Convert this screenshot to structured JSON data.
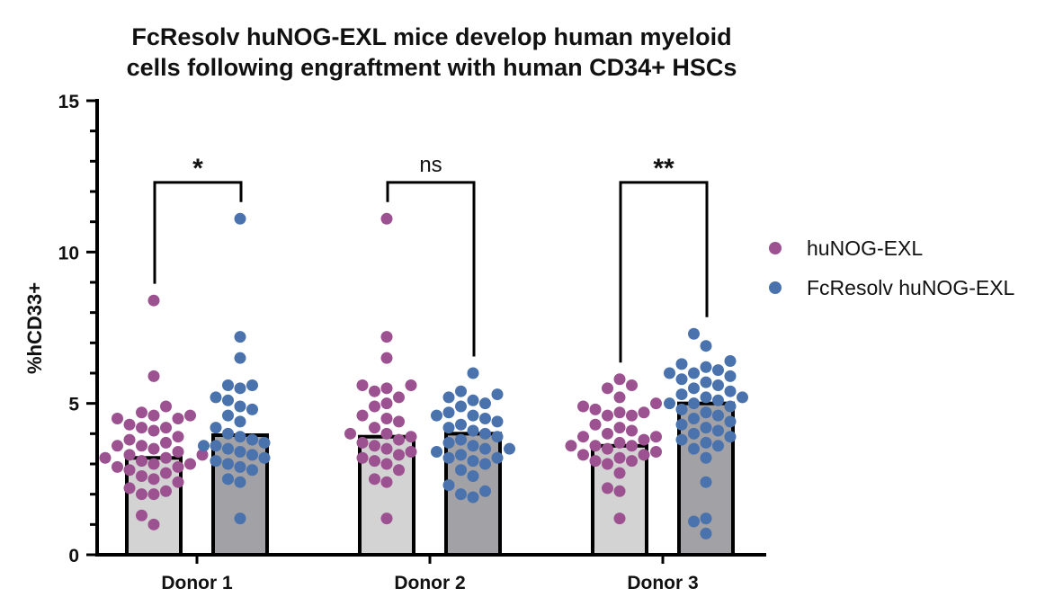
{
  "chart_data": {
    "type": "bar",
    "title_lines": [
      "FcResolv huNOG-EXL mice develop human myeloid",
      "cells following engraftment with human CD34+ HSCs"
    ],
    "xlabel": "",
    "ylabel": "%hCD33+",
    "ylim": [
      0,
      15
    ],
    "yticks": [
      "0",
      "5",
      "10",
      "15"
    ],
    "categories": [
      "Donor 1",
      "Donor 2",
      "Donor 3"
    ],
    "series": [
      {
        "name": "huNOG-EXL",
        "bar_color": "#d3d3d3",
        "point_color": "#9c5290",
        "values": [
          3.2,
          3.9,
          3.6
        ],
        "points": [
          [
            8.4,
            5.9,
            4.9,
            4.7,
            4.6,
            4.6,
            4.5,
            4.5,
            4.3,
            4.2,
            4.2,
            4.1,
            3.9,
            3.8,
            3.7,
            3.6,
            3.6,
            3.5,
            3.4,
            3.3,
            3.3,
            3.2,
            3.2,
            3.1,
            3.0,
            3.0,
            2.9,
            2.9,
            2.8,
            2.7,
            2.6,
            2.5,
            2.4,
            2.2,
            2.1,
            2.0,
            2.0,
            1.3,
            1.0
          ],
          [
            11.1,
            7.2,
            6.5,
            5.6,
            5.6,
            5.5,
            5.4,
            5.2,
            5.0,
            4.9,
            4.6,
            4.5,
            4.4,
            4.2,
            4.0,
            4.0,
            3.9,
            3.8,
            3.7,
            3.6,
            3.5,
            3.4,
            3.3,
            3.2,
            3.1,
            3.0,
            2.8,
            2.5,
            2.4,
            1.2
          ],
          [
            5.8,
            5.6,
            5.5,
            5.2,
            5.0,
            4.9,
            4.8,
            4.7,
            4.7,
            4.6,
            4.6,
            4.3,
            4.2,
            4.1,
            4.0,
            3.9,
            3.9,
            3.8,
            3.7,
            3.6,
            3.6,
            3.6,
            3.5,
            3.4,
            3.3,
            3.3,
            3.2,
            3.1,
            3.1,
            3.0,
            2.7,
            2.2,
            2.1,
            1.2
          ]
        ]
      },
      {
        "name": "FcResolv huNOG-EXL",
        "bar_color": "#a1a1a6",
        "point_color": "#4a72ad",
        "values": [
          3.95,
          4.0,
          5.0
        ],
        "points": [
          [
            11.1,
            7.2,
            6.5,
            5.6,
            5.6,
            5.5,
            5.2,
            5.1,
            4.9,
            4.8,
            4.6,
            4.4,
            4.2,
            4.0,
            3.9,
            3.8,
            3.7,
            3.6,
            3.6,
            3.5,
            3.4,
            3.3,
            3.2,
            3.1,
            3.0,
            2.9,
            2.8,
            2.5,
            2.4,
            1.2
          ],
          [
            6.0,
            5.4,
            5.3,
            5.2,
            5.1,
            5.0,
            4.9,
            4.7,
            4.6,
            4.6,
            4.5,
            4.4,
            4.3,
            4.2,
            4.1,
            4.0,
            3.9,
            3.8,
            3.7,
            3.6,
            3.5,
            3.5,
            3.4,
            3.3,
            3.2,
            3.2,
            3.1,
            3.0,
            2.8,
            2.6,
            2.3,
            2.1,
            2.0,
            1.9
          ],
          [
            7.3,
            6.9,
            6.4,
            6.3,
            6.2,
            6.1,
            6.0,
            6.0,
            5.9,
            5.8,
            5.7,
            5.6,
            5.5,
            5.4,
            5.3,
            5.2,
            5.2,
            5.1,
            5.0,
            5.0,
            4.9,
            4.8,
            4.7,
            4.6,
            4.5,
            4.4,
            4.3,
            4.2,
            4.1,
            4.0,
            3.9,
            3.8,
            3.7,
            3.6,
            3.5,
            3.2,
            2.4,
            1.2,
            1.1,
            0.7
          ]
        ]
      }
    ],
    "significance": [
      {
        "category": "Donor 1",
        "label": "*"
      },
      {
        "category": "Donor 2",
        "label": "ns"
      },
      {
        "category": "Donor 3",
        "label": "**"
      }
    ],
    "legend_position": "right"
  }
}
